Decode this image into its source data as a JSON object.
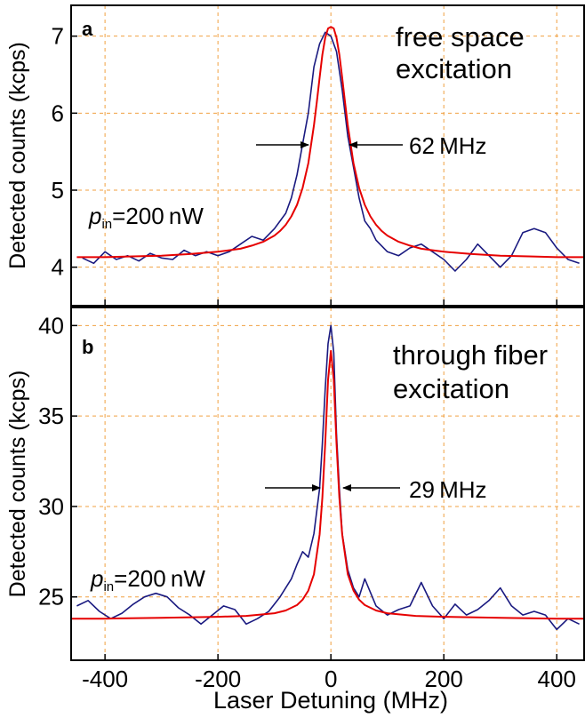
{
  "chart_data": [
    {
      "type": "line",
      "panel_label": "a",
      "annotation_line1": "free space",
      "annotation_line2": "excitation",
      "ylabel": "Detected counts (kcps)",
      "xlim": [
        -460,
        450
      ],
      "ylim": [
        3.5,
        7.4
      ],
      "xticks": [
        -400,
        -200,
        0,
        200,
        400
      ],
      "yticks": [
        4,
        5,
        6,
        7
      ],
      "yticklabels": [
        "4",
        "5",
        "6",
        "7"
      ],
      "grid": true,
      "width_label": "62 MHz",
      "fwhm_mhz": 62,
      "power_label_prefix": "p",
      "power_label_sub": "in",
      "power_label_value": "=200 nW",
      "series": [
        {
          "color": "#1a1a80",
          "x": [
            -440,
            -420,
            -400,
            -380,
            -360,
            -340,
            -320,
            -300,
            -280,
            -260,
            -240,
            -220,
            -200,
            -180,
            -160,
            -140,
            -120,
            -100,
            -80,
            -70,
            -60,
            -50,
            -40,
            -30,
            -20,
            -10,
            0,
            10,
            20,
            30,
            40,
            50,
            60,
            70,
            80,
            100,
            120,
            140,
            160,
            180,
            200,
            220,
            240,
            260,
            280,
            300,
            320,
            340,
            360,
            380,
            400,
            420,
            440
          ],
          "y": [
            4.12,
            4.05,
            4.2,
            4.1,
            4.15,
            4.08,
            4.18,
            4.12,
            4.1,
            4.22,
            4.15,
            4.2,
            4.15,
            4.2,
            4.3,
            4.4,
            4.35,
            4.5,
            4.7,
            4.9,
            5.2,
            5.6,
            6.0,
            6.6,
            6.9,
            7.05,
            7.0,
            6.8,
            6.3,
            5.7,
            5.3,
            4.9,
            4.6,
            4.5,
            4.35,
            4.2,
            4.15,
            4.25,
            4.3,
            4.2,
            4.1,
            3.95,
            4.1,
            4.3,
            4.15,
            4.0,
            4.15,
            4.45,
            4.5,
            4.45,
            4.25,
            4.1,
            4.05
          ]
        },
        {
          "color": "#e60000",
          "x": [
            -450,
            -400,
            -350,
            -300,
            -250,
            -200,
            -180,
            -160,
            -140,
            -120,
            -100,
            -90,
            -80,
            -70,
            -60,
            -50,
            -40,
            -30,
            -25,
            -20,
            -15,
            -10,
            -5,
            0,
            5,
            10,
            15,
            20,
            25,
            30,
            40,
            50,
            60,
            70,
            80,
            90,
            100,
            120,
            140,
            160,
            180,
            200,
            250,
            300,
            350,
            400,
            450
          ],
          "y": [
            4.13,
            4.13,
            4.14,
            4.15,
            4.17,
            4.2,
            4.22,
            4.24,
            4.28,
            4.33,
            4.41,
            4.47,
            4.55,
            4.66,
            4.81,
            5.03,
            5.35,
            5.84,
            6.14,
            6.46,
            6.76,
            6.98,
            7.1,
            7.12,
            7.1,
            6.98,
            6.76,
            6.46,
            6.14,
            5.84,
            5.35,
            5.03,
            4.81,
            4.66,
            4.55,
            4.47,
            4.41,
            4.33,
            4.28,
            4.24,
            4.22,
            4.2,
            4.17,
            4.15,
            4.14,
            4.13,
            4.13
          ]
        }
      ]
    },
    {
      "type": "line",
      "panel_label": "b",
      "annotation_line1": "through fiber",
      "annotation_line2": "excitation",
      "ylabel": "Detected counts (kcps)",
      "xlabel": "Laser Detuning (MHz)",
      "xlim": [
        -460,
        450
      ],
      "ylim": [
        21.5,
        41
      ],
      "xticks": [
        -400,
        -200,
        0,
        200,
        400
      ],
      "xticklabels": [
        "-400",
        "-200",
        "0",
        "200",
        "400"
      ],
      "yticks": [
        25,
        30,
        35,
        40
      ],
      "yticklabels": [
        "25",
        "30",
        "35",
        "40"
      ],
      "grid": true,
      "width_label": "29 MHz",
      "fwhm_mhz": 29,
      "power_label_prefix": "p",
      "power_label_sub": "in",
      "power_label_value": "=200 nW",
      "series": [
        {
          "color": "#1a1a80",
          "x": [
            -450,
            -430,
            -410,
            -390,
            -370,
            -350,
            -330,
            -310,
            -290,
            -270,
            -250,
            -230,
            -210,
            -190,
            -170,
            -150,
            -130,
            -110,
            -90,
            -70,
            -60,
            -50,
            -40,
            -30,
            -20,
            -15,
            -10,
            -5,
            0,
            5,
            10,
            15,
            20,
            30,
            40,
            50,
            60,
            80,
            100,
            120,
            140,
            160,
            180,
            200,
            220,
            240,
            260,
            280,
            300,
            320,
            340,
            360,
            380,
            400,
            420,
            440
          ],
          "y": [
            24.5,
            24.8,
            24.2,
            23.8,
            24.1,
            24.6,
            25.0,
            25.2,
            25.0,
            24.4,
            24.0,
            23.5,
            24.0,
            24.5,
            24.3,
            23.5,
            23.8,
            24.2,
            25.0,
            26.0,
            26.8,
            27.5,
            27.2,
            28.5,
            31.0,
            33.5,
            36.5,
            39.0,
            40.0,
            38.5,
            34.0,
            31.0,
            28.5,
            26.5,
            25.5,
            25.0,
            26.0,
            24.5,
            24.0,
            24.3,
            24.5,
            25.8,
            24.5,
            23.8,
            24.6,
            24.0,
            24.3,
            24.8,
            25.5,
            24.5,
            24.0,
            24.2,
            24.0,
            23.2,
            23.8,
            23.5
          ]
        },
        {
          "color": "#e60000",
          "x": [
            -460,
            -400,
            -300,
            -200,
            -150,
            -100,
            -80,
            -60,
            -50,
            -40,
            -30,
            -20,
            -15,
            -10,
            -5,
            0,
            5,
            10,
            15,
            20,
            30,
            40,
            50,
            60,
            80,
            100,
            150,
            200,
            300,
            400,
            450
          ],
          "y": [
            23.8,
            23.8,
            23.85,
            23.9,
            23.95,
            24.1,
            24.25,
            24.55,
            24.85,
            25.35,
            26.25,
            28.45,
            30.5,
            33.5,
            37.0,
            38.6,
            37.0,
            33.5,
            30.5,
            28.45,
            26.25,
            25.35,
            24.85,
            24.55,
            24.25,
            24.1,
            23.95,
            23.9,
            23.85,
            23.8,
            23.8
          ]
        }
      ]
    }
  ]
}
